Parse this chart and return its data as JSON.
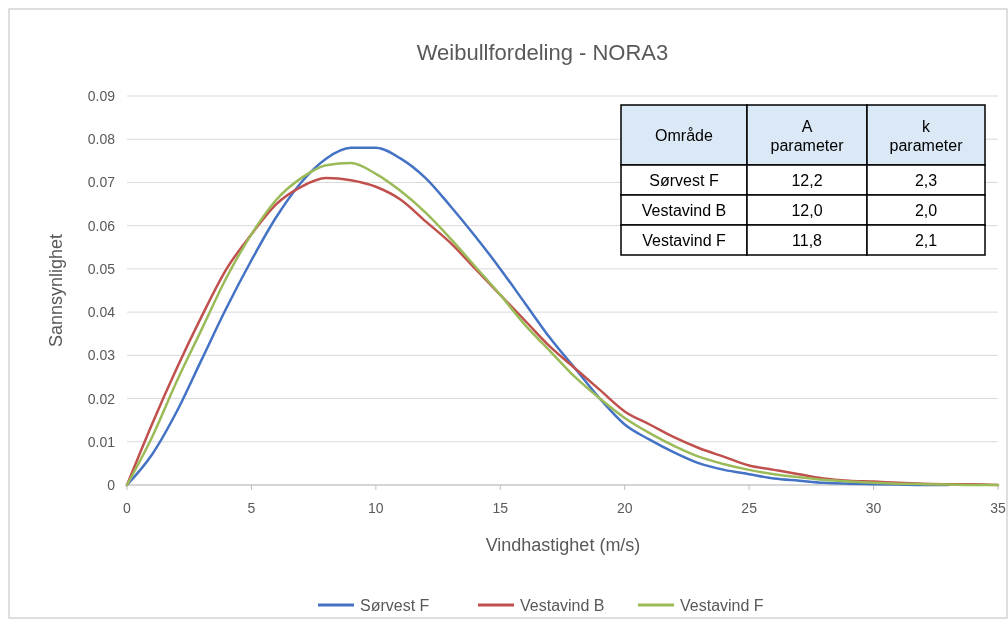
{
  "chart_data": {
    "type": "line",
    "title": "Weibullfordeling - NORA3",
    "xlabel": "Vindhastighet (m/s)",
    "ylabel": "Sannsynlighet",
    "x": [
      0,
      1,
      2,
      3,
      4,
      5,
      6,
      7,
      8,
      9,
      10,
      11,
      12,
      13,
      14,
      15,
      16,
      17,
      18,
      19,
      20,
      21,
      22,
      23,
      24,
      25,
      26,
      27,
      28,
      29,
      30,
      31,
      32,
      33,
      34,
      35
    ],
    "series": [
      {
        "name": "Sørvest F",
        "color": "#4472c4",
        "values": [
          0,
          0.007,
          0.017,
          0.029,
          0.041,
          0.052,
          0.062,
          0.07,
          0.0755,
          0.078,
          0.078,
          0.0755,
          0.071,
          0.0645,
          0.0575,
          0.05,
          0.042,
          0.034,
          0.027,
          0.02,
          0.014,
          0.0105,
          0.0075,
          0.005,
          0.0035,
          0.0025,
          0.0015,
          0.001,
          0.0005,
          0.0003,
          0.0002,
          0.0001,
          0,
          0,
          null,
          null
        ]
      },
      {
        "name": "Vestavind B",
        "color": "#c0504d",
        "values": [
          0,
          0.014,
          0.027,
          0.039,
          0.05,
          0.058,
          0.065,
          0.069,
          0.071,
          0.0705,
          0.069,
          0.066,
          0.061,
          0.056,
          0.05,
          0.044,
          0.038,
          0.032,
          0.027,
          0.022,
          0.017,
          0.014,
          0.011,
          0.0085,
          0.0065,
          0.0045,
          0.0035,
          0.0025,
          0.0015,
          0.001,
          0.0008,
          0.0005,
          0.0003,
          0.0002,
          0.0002,
          0
        ]
      },
      {
        "name": "Vestavind F",
        "color": "#9bbb59",
        "values": [
          0,
          0.011,
          0.024,
          0.036,
          0.048,
          0.058,
          0.066,
          0.071,
          0.074,
          0.0745,
          0.072,
          0.068,
          0.063,
          0.057,
          0.0505,
          0.044,
          0.037,
          0.031,
          0.025,
          0.02,
          0.0155,
          0.012,
          0.009,
          0.0065,
          0.0048,
          0.0035,
          0.0025,
          0.0018,
          0.0012,
          0.0008,
          0.0005,
          0.0003,
          0.0002,
          0.0001,
          0,
          0
        ]
      }
    ],
    "xlim": [
      0,
      35
    ],
    "xticks": [
      0,
      5,
      10,
      15,
      20,
      25,
      30,
      35
    ],
    "ylim": [
      0,
      0.09
    ],
    "yticks": [
      {
        "value": 0,
        "label": "0"
      },
      {
        "value": 0.01,
        "label": "0.01"
      },
      {
        "value": 0.02,
        "label": "0.02"
      },
      {
        "value": 0.03,
        "label": "0.03"
      },
      {
        "value": 0.04,
        "label": "0.04"
      },
      {
        "value": 0.05,
        "label": "0.05"
      },
      {
        "value": 0.06,
        "label": "0.06"
      },
      {
        "value": 0.07,
        "label": "0.07"
      },
      {
        "value": 0.08,
        "label": "0.08"
      },
      {
        "value": 0.09,
        "label": "0.09"
      }
    ],
    "grid": "y",
    "legend": "bottom",
    "marker": "none",
    "line_style": "solid",
    "annotations": [
      "Område",
      "A\nparameter",
      "k\nparameter",
      "Sørvest F",
      "12,2",
      "2,3",
      "Vestavind B",
      "12,0",
      "2,0",
      "Vestavind F",
      "11,8",
      "2,1"
    ]
  }
}
